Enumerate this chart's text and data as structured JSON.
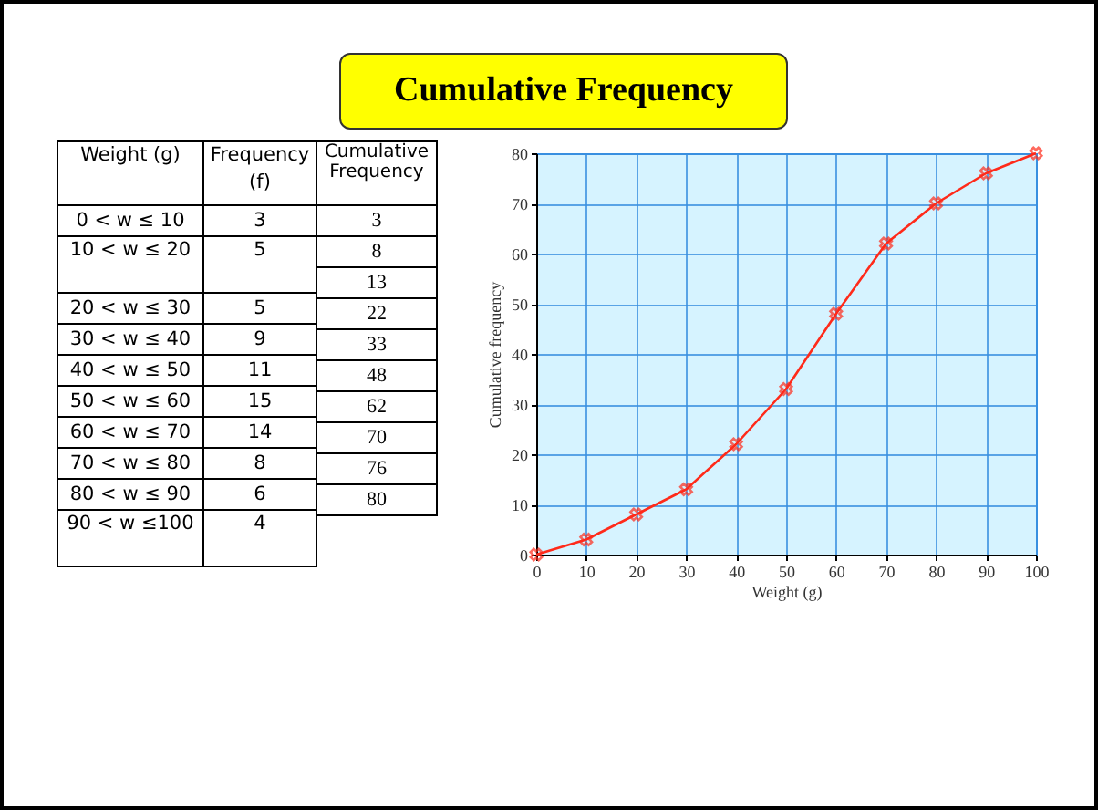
{
  "chart_data": {
    "type": "line",
    "title": "Cumulative Frequency",
    "xlabel": "Weight (g)",
    "ylabel": "Cumulative frequency",
    "x": [
      0,
      10,
      20,
      30,
      40,
      50,
      60,
      70,
      80,
      90,
      100
    ],
    "series": [
      {
        "color": "#ff2a1a",
        "values": [
          0,
          3,
          8,
          13,
          22,
          33,
          48,
          62,
          70,
          76,
          80
        ]
      }
    ],
    "xlim": [
      0,
      100
    ],
    "xticks": [
      0,
      10,
      20,
      30,
      40,
      50,
      60,
      70,
      80,
      90,
      100
    ],
    "ylim": [
      0,
      80
    ],
    "yticks": [
      0,
      10,
      20,
      30,
      40,
      50,
      60,
      70,
      80
    ],
    "grid": true,
    "marker": "cross",
    "line_style": "solid",
    "annotations": [
      "Weight (g)",
      "0 < w ≤ 10",
      "10 < w ≤ 20",
      "20 < w ≤ 30",
      "30 < w ≤ 40",
      "40 < w ≤ 50",
      "50 < w ≤ 60",
      "60 < w ≤ 70",
      "70 < w ≤ 80",
      "80 < w ≤ 90",
      "90 < w ≤100",
      "Frequency (f)",
      "3",
      "5",
      "5",
      "9",
      "11",
      "15",
      "14",
      "8",
      "6",
      "4",
      "Cumulative Frequency",
      "3",
      "8",
      "13",
      "22",
      "33",
      "48",
      "62",
      "70",
      "76",
      "80"
    ]
  }
}
